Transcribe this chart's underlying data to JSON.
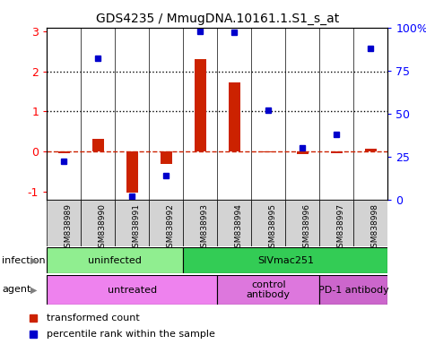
{
  "title": "GDS4235 / MmugDNA.10161.1.S1_s_at",
  "samples": [
    "GSM838989",
    "GSM838990",
    "GSM838991",
    "GSM838992",
    "GSM838993",
    "GSM838994",
    "GSM838995",
    "GSM838996",
    "GSM838997",
    "GSM838998"
  ],
  "transformed_count": [
    -0.05,
    0.32,
    -1.02,
    -0.3,
    2.32,
    1.72,
    -0.02,
    -0.07,
    -0.04,
    0.07
  ],
  "percentile_rank": [
    22,
    82,
    2,
    14,
    98,
    97,
    52,
    30,
    38,
    88
  ],
  "ylim_left": [
    -1.2,
    3.1
  ],
  "ylim_right": [
    0,
    100
  ],
  "bar_color": "#cc2200",
  "point_color": "#0000cc",
  "zero_line_color": "#cc2200",
  "left_ticks": [
    -1,
    0,
    1,
    2,
    3
  ],
  "right_ticks": [
    0,
    25,
    50,
    75,
    100
  ],
  "right_tick_labels": [
    "0",
    "25",
    "50",
    "75",
    "100%"
  ],
  "infection_groups": [
    {
      "label": "uninfected",
      "start": 0,
      "end": 4,
      "color": "#90ee90"
    },
    {
      "label": "SIVmac251",
      "start": 4,
      "end": 10,
      "color": "#33cc55"
    }
  ],
  "agent_groups": [
    {
      "label": "untreated",
      "start": 0,
      "end": 5,
      "color": "#ee82ee"
    },
    {
      "label": "control\nantibody",
      "start": 5,
      "end": 8,
      "color": "#dd77dd"
    },
    {
      "label": "PD-1 antibody",
      "start": 8,
      "end": 10,
      "color": "#cc66cc"
    }
  ],
  "sample_bg_color": "#d3d3d3",
  "legend_items": [
    {
      "label": "transformed count",
      "color": "#cc2200"
    },
    {
      "label": "percentile rank within the sample",
      "color": "#0000cc"
    }
  ]
}
